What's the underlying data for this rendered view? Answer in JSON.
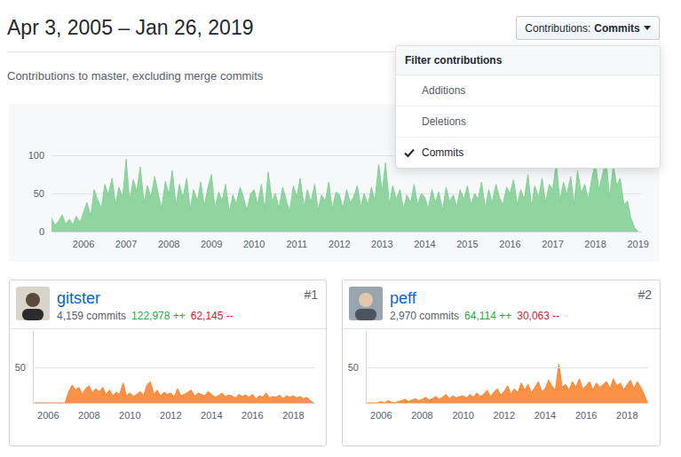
{
  "header": {
    "title": "Apr 3, 2005 – Jan 26, 2019",
    "subtitle": "Contributions to master, excluding merge commits"
  },
  "filter": {
    "button_label": "Contributions:",
    "button_value": "Commits",
    "menu_title": "Filter contributions",
    "options": [
      "Additions",
      "Deletions",
      "Commits"
    ],
    "selected": "Commits"
  },
  "contributors": [
    {
      "rank": "#1",
      "name": "gitster",
      "commits": "4,159 commits",
      "additions": "122,978 ++",
      "deletions": "62,145 --"
    },
    {
      "rank": "#2",
      "name": "peff",
      "commits": "2,970 commits",
      "additions": "64,114 ++",
      "deletions": "30,063 --"
    }
  ],
  "chart_data": [
    {
      "type": "area",
      "color": "#85cf95",
      "grid": true,
      "xlim": [
        2005.25,
        2019.07
      ],
      "xticks": [
        2006,
        2007,
        2008,
        2009,
        2010,
        2011,
        2012,
        2013,
        2014,
        2015,
        2016,
        2017,
        2018,
        2019
      ],
      "ylim": [
        0,
        100
      ],
      "yticks": [
        0,
        50,
        100
      ],
      "x": [
        2005.25,
        2005.33,
        2005.42,
        2005.5,
        2005.58,
        2005.67,
        2005.75,
        2005.83,
        2005.92,
        2006,
        2006.08,
        2006.17,
        2006.25,
        2006.33,
        2006.42,
        2006.5,
        2006.58,
        2006.67,
        2006.75,
        2006.83,
        2006.92,
        2007,
        2007.08,
        2007.17,
        2007.25,
        2007.33,
        2007.42,
        2007.5,
        2007.58,
        2007.67,
        2007.75,
        2007.83,
        2007.92,
        2008,
        2008.08,
        2008.17,
        2008.25,
        2008.33,
        2008.42,
        2008.5,
        2008.58,
        2008.67,
        2008.75,
        2008.83,
        2008.92,
        2009,
        2009.08,
        2009.17,
        2009.25,
        2009.33,
        2009.42,
        2009.5,
        2009.58,
        2009.67,
        2009.75,
        2009.83,
        2009.92,
        2010,
        2010.08,
        2010.17,
        2010.25,
        2010.33,
        2010.42,
        2010.5,
        2010.58,
        2010.67,
        2010.75,
        2010.83,
        2010.92,
        2011,
        2011.08,
        2011.17,
        2011.25,
        2011.33,
        2011.42,
        2011.5,
        2011.58,
        2011.67,
        2011.75,
        2011.83,
        2011.92,
        2012,
        2012.08,
        2012.17,
        2012.25,
        2012.33,
        2012.42,
        2012.5,
        2012.58,
        2012.67,
        2012.75,
        2012.83,
        2012.92,
        2013,
        2013.08,
        2013.17,
        2013.25,
        2013.33,
        2013.42,
        2013.5,
        2013.58,
        2013.67,
        2013.75,
        2013.83,
        2013.92,
        2014,
        2014.08,
        2014.17,
        2014.25,
        2014.33,
        2014.42,
        2014.5,
        2014.58,
        2014.67,
        2014.75,
        2014.83,
        2014.92,
        2015,
        2015.08,
        2015.17,
        2015.25,
        2015.33,
        2015.42,
        2015.5,
        2015.58,
        2015.67,
        2015.75,
        2015.83,
        2015.92,
        2016,
        2016.08,
        2016.17,
        2016.25,
        2016.33,
        2016.42,
        2016.5,
        2016.58,
        2016.67,
        2016.75,
        2016.83,
        2016.92,
        2017,
        2017.08,
        2017.17,
        2017.25,
        2017.33,
        2017.42,
        2017.5,
        2017.58,
        2017.67,
        2017.75,
        2017.83,
        2017.92,
        2018,
        2018.08,
        2018.17,
        2018.25,
        2018.33,
        2018.42,
        2018.5,
        2018.58,
        2018.67,
        2018.75,
        2018.83,
        2018.92,
        2019
      ],
      "values": [
        18,
        8,
        14,
        22,
        10,
        16,
        9,
        20,
        12,
        25,
        38,
        20,
        55,
        42,
        30,
        62,
        48,
        70,
        35,
        58,
        45,
        95,
        40,
        68,
        52,
        85,
        38,
        60,
        45,
        72,
        50,
        30,
        66,
        48,
        80,
        35,
        62,
        44,
        70,
        28,
        55,
        40,
        65,
        33,
        58,
        75,
        30,
        52,
        40,
        62,
        25,
        48,
        36,
        58,
        45,
        28,
        50,
        55,
        35,
        62,
        28,
        78,
        40,
        50,
        30,
        58,
        42,
        25,
        60,
        45,
        70,
        32,
        55,
        38,
        62,
        28,
        48,
        40,
        65,
        30,
        52,
        48,
        30,
        55,
        38,
        45,
        60,
        32,
        50,
        35,
        58,
        40,
        88,
        52,
        90,
        35,
        60,
        42,
        55,
        30,
        48,
        38,
        62,
        35,
        50,
        45,
        30,
        55,
        38,
        52,
        28,
        58,
        40,
        48,
        32,
        55,
        42,
        60,
        35,
        50,
        42,
        65,
        30,
        55,
        38,
        62,
        45,
        35,
        58,
        50,
        68,
        35,
        55,
        42,
        75,
        32,
        60,
        45,
        70,
        38,
        62,
        55,
        90,
        40,
        65,
        48,
        72,
        35,
        80,
        50,
        62,
        42,
        70,
        92,
        55,
        75,
        95,
        45,
        88,
        60,
        70,
        35,
        40,
        18,
        5,
        0
      ]
    },
    {
      "type": "area",
      "color": "#fb8532",
      "grid": true,
      "xlim": [
        2005.25,
        2019.07
      ],
      "xticks": [
        2006,
        2008,
        2010,
        2012,
        2014,
        2016,
        2018
      ],
      "ylim": [
        0,
        100
      ],
      "yticks": [
        50
      ],
      "x": [
        2005.33,
        2005.5,
        2005.67,
        2005.83,
        2006,
        2006.17,
        2006.33,
        2006.5,
        2006.67,
        2006.83,
        2007,
        2007.17,
        2007.33,
        2007.5,
        2007.67,
        2007.83,
        2008,
        2008.17,
        2008.33,
        2008.5,
        2008.67,
        2008.83,
        2009,
        2009.17,
        2009.33,
        2009.5,
        2009.67,
        2009.83,
        2010,
        2010.17,
        2010.33,
        2010.5,
        2010.67,
        2010.83,
        2011,
        2011.17,
        2011.33,
        2011.5,
        2011.67,
        2011.83,
        2012,
        2012.17,
        2012.33,
        2012.5,
        2012.67,
        2012.83,
        2013,
        2013.17,
        2013.33,
        2013.5,
        2013.67,
        2013.83,
        2014,
        2014.17,
        2014.33,
        2014.5,
        2014.67,
        2014.83,
        2015,
        2015.17,
        2015.33,
        2015.5,
        2015.67,
        2015.83,
        2016,
        2016.17,
        2016.33,
        2016.5,
        2016.67,
        2016.83,
        2017,
        2017.17,
        2017.33,
        2017.5,
        2017.67,
        2017.83,
        2018,
        2018.17,
        2018.33,
        2018.5,
        2018.67,
        2018.83,
        2019
      ],
      "values": [
        0,
        0,
        0,
        0,
        0,
        0,
        0,
        0,
        0,
        0,
        15,
        25,
        18,
        22,
        12,
        20,
        24,
        14,
        20,
        16,
        22,
        12,
        18,
        10,
        15,
        12,
        28,
        10,
        14,
        9,
        12,
        16,
        10,
        25,
        30,
        12,
        18,
        10,
        15,
        12,
        14,
        8,
        20,
        10,
        12,
        15,
        18,
        9,
        14,
        12,
        10,
        16,
        12,
        8,
        10,
        14,
        9,
        11,
        10,
        7,
        12,
        9,
        11,
        8,
        12,
        6,
        10,
        8,
        14,
        7,
        9,
        8,
        11,
        6,
        10,
        8,
        10,
        7,
        9,
        6,
        8,
        3,
        0
      ]
    },
    {
      "type": "area",
      "color": "#fb8532",
      "grid": true,
      "xlim": [
        2005.25,
        2019.07
      ],
      "xticks": [
        2006,
        2008,
        2010,
        2012,
        2014,
        2016,
        2018
      ],
      "ylim": [
        0,
        100
      ],
      "yticks": [
        50
      ],
      "x": [
        2005.33,
        2005.5,
        2005.67,
        2005.83,
        2006,
        2006.17,
        2006.33,
        2006.5,
        2006.67,
        2006.83,
        2007,
        2007.17,
        2007.33,
        2007.5,
        2007.67,
        2007.83,
        2008,
        2008.17,
        2008.33,
        2008.5,
        2008.67,
        2008.83,
        2009,
        2009.17,
        2009.33,
        2009.5,
        2009.67,
        2009.83,
        2010,
        2010.17,
        2010.33,
        2010.5,
        2010.67,
        2010.83,
        2011,
        2011.17,
        2011.33,
        2011.5,
        2011.67,
        2011.83,
        2012,
        2012.17,
        2012.33,
        2012.5,
        2012.67,
        2012.83,
        2013,
        2013.17,
        2013.33,
        2013.5,
        2013.67,
        2013.83,
        2014,
        2014.17,
        2014.33,
        2014.5,
        2014.67,
        2014.83,
        2015,
        2015.17,
        2015.33,
        2015.5,
        2015.67,
        2015.83,
        2016,
        2016.17,
        2016.33,
        2016.5,
        2016.67,
        2016.83,
        2017,
        2017.17,
        2017.33,
        2017.5,
        2017.67,
        2017.83,
        2018,
        2018.17,
        2018.33,
        2018.5,
        2018.67,
        2018.83,
        2019
      ],
      "values": [
        0,
        0,
        0,
        0,
        2,
        0,
        3,
        1,
        0,
        2,
        3,
        5,
        2,
        4,
        6,
        3,
        5,
        8,
        4,
        6,
        9,
        5,
        8,
        12,
        6,
        10,
        7,
        9,
        10,
        7,
        12,
        8,
        14,
        9,
        12,
        18,
        9,
        15,
        20,
        11,
        16,
        24,
        12,
        20,
        14,
        28,
        18,
        26,
        14,
        22,
        30,
        16,
        20,
        32,
        24,
        18,
        55,
        22,
        26,
        18,
        30,
        22,
        34,
        20,
        24,
        30,
        18,
        28,
        22,
        26,
        30,
        20,
        34,
        24,
        28,
        18,
        26,
        32,
        20,
        30,
        22,
        12,
        0
      ]
    }
  ]
}
